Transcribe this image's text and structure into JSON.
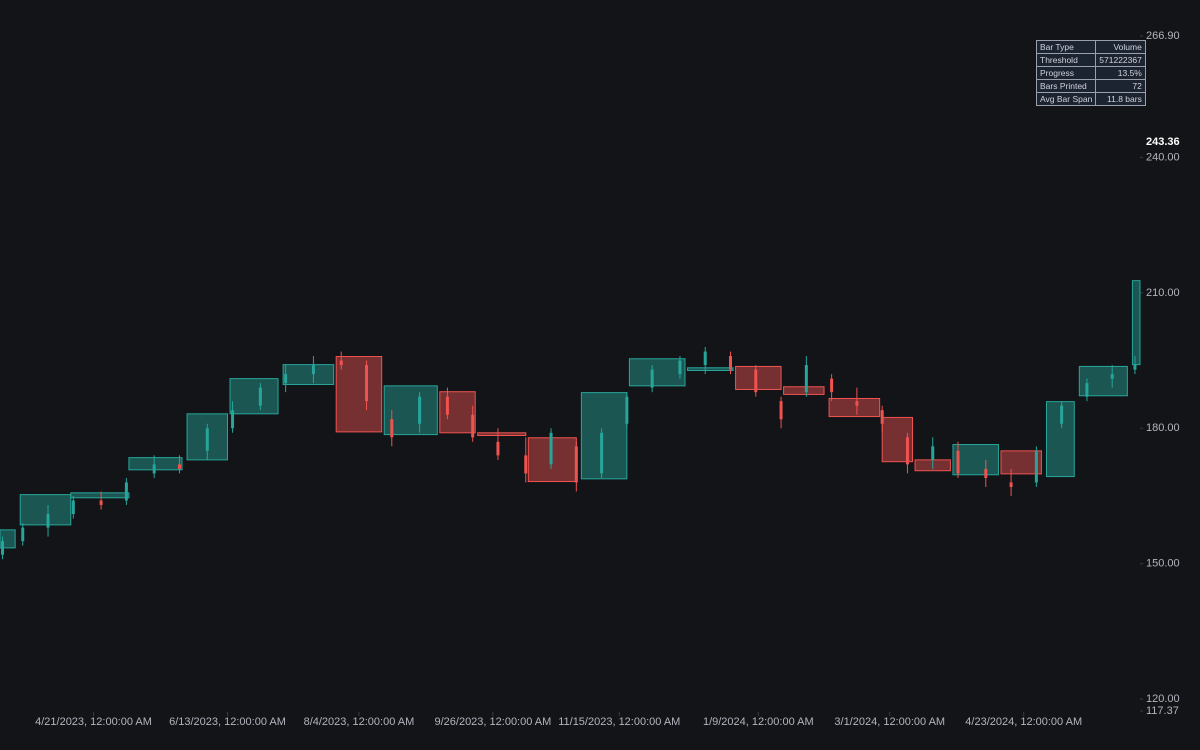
{
  "chart_data": {
    "type": "candlestick",
    "xlim": [
      "2023-03-15",
      "2024-06-08"
    ],
    "xticks": [
      {
        "value": "2023-04-21",
        "label": "4/21/2023, 12:00:00 AM"
      },
      {
        "value": "2023-06-13",
        "label": "6/13/2023, 12:00:00 AM"
      },
      {
        "value": "2023-08-04",
        "label": "8/4/2023, 12:00:00 AM"
      },
      {
        "value": "2023-09-26",
        "label": "9/26/2023, 12:00:00 AM"
      },
      {
        "value": "2023-11-15",
        "label": "11/15/2023, 12:00:00 AM"
      },
      {
        "value": "2024-01-09",
        "label": "1/9/2024, 12:00:00 AM"
      },
      {
        "value": "2024-03-01",
        "label": "3/1/2024, 12:00:00 AM"
      },
      {
        "value": "2024-04-23",
        "label": "4/23/2024, 12:00:00 AM"
      }
    ],
    "ylim": [
      117.37,
      266.9
    ],
    "yticks": [
      {
        "value": 117.37,
        "label": "117.37"
      },
      {
        "value": 120,
        "label": "120.00"
      },
      {
        "value": 150,
        "label": "150.00"
      },
      {
        "value": 180,
        "label": "180.00"
      },
      {
        "value": 210,
        "label": "210.00"
      },
      {
        "value": 240,
        "label": "240.00"
      },
      {
        "value": 266.9,
        "label": "266.90"
      }
    ],
    "last_price": {
      "value": 243.36,
      "label": "243.36"
    },
    "up_color": "#26a69a",
    "down_color": "#ef5350",
    "candles": {
      "x": [
        "2023-03-16",
        "2023-03-24",
        "2023-04-03",
        "2023-04-13",
        "2023-04-24",
        "2023-05-04",
        "2023-05-15",
        "2023-05-25",
        "2023-06-05",
        "2023-06-15",
        "2023-06-26",
        "2023-07-06",
        "2023-07-17",
        "2023-07-28",
        "2023-08-07",
        "2023-08-17",
        "2023-08-28",
        "2023-09-08",
        "2023-09-18",
        "2023-09-28",
        "2023-10-09",
        "2023-10-19",
        "2023-10-29",
        "2023-11-08",
        "2023-11-18",
        "2023-11-28",
        "2023-12-09",
        "2023-12-19",
        "2023-12-29",
        "2024-01-08",
        "2024-01-18",
        "2024-01-28",
        "2024-02-07",
        "2024-02-17",
        "2024-02-27",
        "2024-03-08",
        "2024-03-18",
        "2024-03-28",
        "2024-04-08",
        "2024-04-18",
        "2024-04-28",
        "2024-05-08",
        "2024-05-18",
        "2024-05-28",
        "2024-06-06"
      ],
      "open": [
        152,
        155,
        158,
        161,
        164,
        164,
        170,
        172,
        175,
        180,
        185,
        190,
        192,
        195,
        194,
        182,
        181,
        187,
        183,
        177,
        174,
        172,
        176,
        170,
        181,
        189,
        192,
        194,
        196,
        193,
        186,
        188,
        191,
        186,
        184,
        178,
        173,
        175,
        171,
        168,
        168,
        181,
        187,
        191,
        193
      ],
      "high": [
        156,
        159,
        163,
        165,
        166,
        169,
        174,
        174,
        181,
        186,
        190,
        194,
        196,
        197,
        195,
        184,
        188,
        189,
        185,
        180,
        178,
        180,
        177,
        180,
        188,
        194,
        196,
        198,
        197,
        194,
        187,
        196,
        192,
        189,
        185,
        179,
        178,
        177,
        173,
        171,
        176,
        186,
        191,
        194,
        196
      ],
      "low": [
        151,
        154,
        156,
        160,
        162,
        163,
        169,
        170,
        173,
        179,
        184,
        188,
        190,
        193,
        184,
        176,
        179,
        182,
        177,
        173,
        168,
        171,
        166,
        169,
        180,
        188,
        191,
        192,
        192,
        187,
        180,
        187,
        186,
        183,
        179,
        170,
        171,
        169,
        167,
        165,
        167,
        180,
        186,
        189,
        192
      ],
      "close": [
        155,
        158,
        161,
        164,
        163,
        168,
        172,
        171,
        180,
        184,
        189,
        192,
        194,
        194,
        186,
        178,
        187,
        183,
        178,
        174,
        170,
        179,
        168,
        179,
        187,
        193,
        195,
        197,
        193,
        188,
        182,
        194,
        188,
        185,
        181,
        172,
        176,
        170,
        169,
        167,
        175,
        185,
        190,
        192,
        194
      ]
    },
    "boxes": {
      "start": [
        "2023-03-15",
        "2023-03-23",
        "2023-04-12",
        "2023-05-05",
        "2023-05-28",
        "2023-06-14",
        "2023-07-05",
        "2023-07-26",
        "2023-08-14",
        "2023-09-05",
        "2023-09-20",
        "2023-10-10",
        "2023-10-31",
        "2023-11-19",
        "2023-12-12",
        "2023-12-31",
        "2024-01-19",
        "2024-02-06",
        "2024-02-27",
        "2024-03-11",
        "2024-03-26",
        "2024-04-14",
        "2024-05-02",
        "2024-05-15",
        "2024-06-05"
      ],
      "end": [
        "2023-03-21",
        "2023-04-12",
        "2023-05-05",
        "2023-05-26",
        "2023-06-13",
        "2023-07-03",
        "2023-07-25",
        "2023-08-13",
        "2023-09-04",
        "2023-09-19",
        "2023-10-09",
        "2023-10-29",
        "2023-11-18",
        "2023-12-11",
        "2023-12-30",
        "2024-01-18",
        "2024-02-04",
        "2024-02-26",
        "2024-03-10",
        "2024-03-25",
        "2024-04-13",
        "2024-04-30",
        "2024-05-13",
        "2024-06-03",
        "2024-06-08"
      ],
      "open": [
        153.5,
        158.6,
        164.6,
        170.8,
        173.0,
        183.2,
        189.7,
        195.9,
        178.6,
        188.1,
        179.0,
        177.9,
        168.8,
        189.4,
        192.8,
        193.7,
        189.2,
        186.6,
        182.4,
        173.0,
        169.7,
        175.0,
        169.3,
        187.2,
        194.1
      ],
      "close": [
        157.5,
        165.3,
        165.7,
        173.5,
        183.2,
        191.0,
        194.1,
        179.2,
        189.4,
        179.0,
        178.4,
        168.2,
        187.9,
        195.4,
        193.4,
        188.6,
        187.5,
        182.6,
        172.6,
        170.6,
        176.4,
        169.9,
        185.9,
        193.7,
        212.7
      ]
    }
  },
  "table": {
    "rows": [
      [
        "Bar Type",
        "Volume"
      ],
      [
        "Threshold",
        571222367
      ],
      [
        "Progress",
        "13.5%"
      ],
      [
        "Bars Printed",
        72
      ],
      [
        "Avg Bar Span",
        "11.8 bars"
      ]
    ]
  }
}
